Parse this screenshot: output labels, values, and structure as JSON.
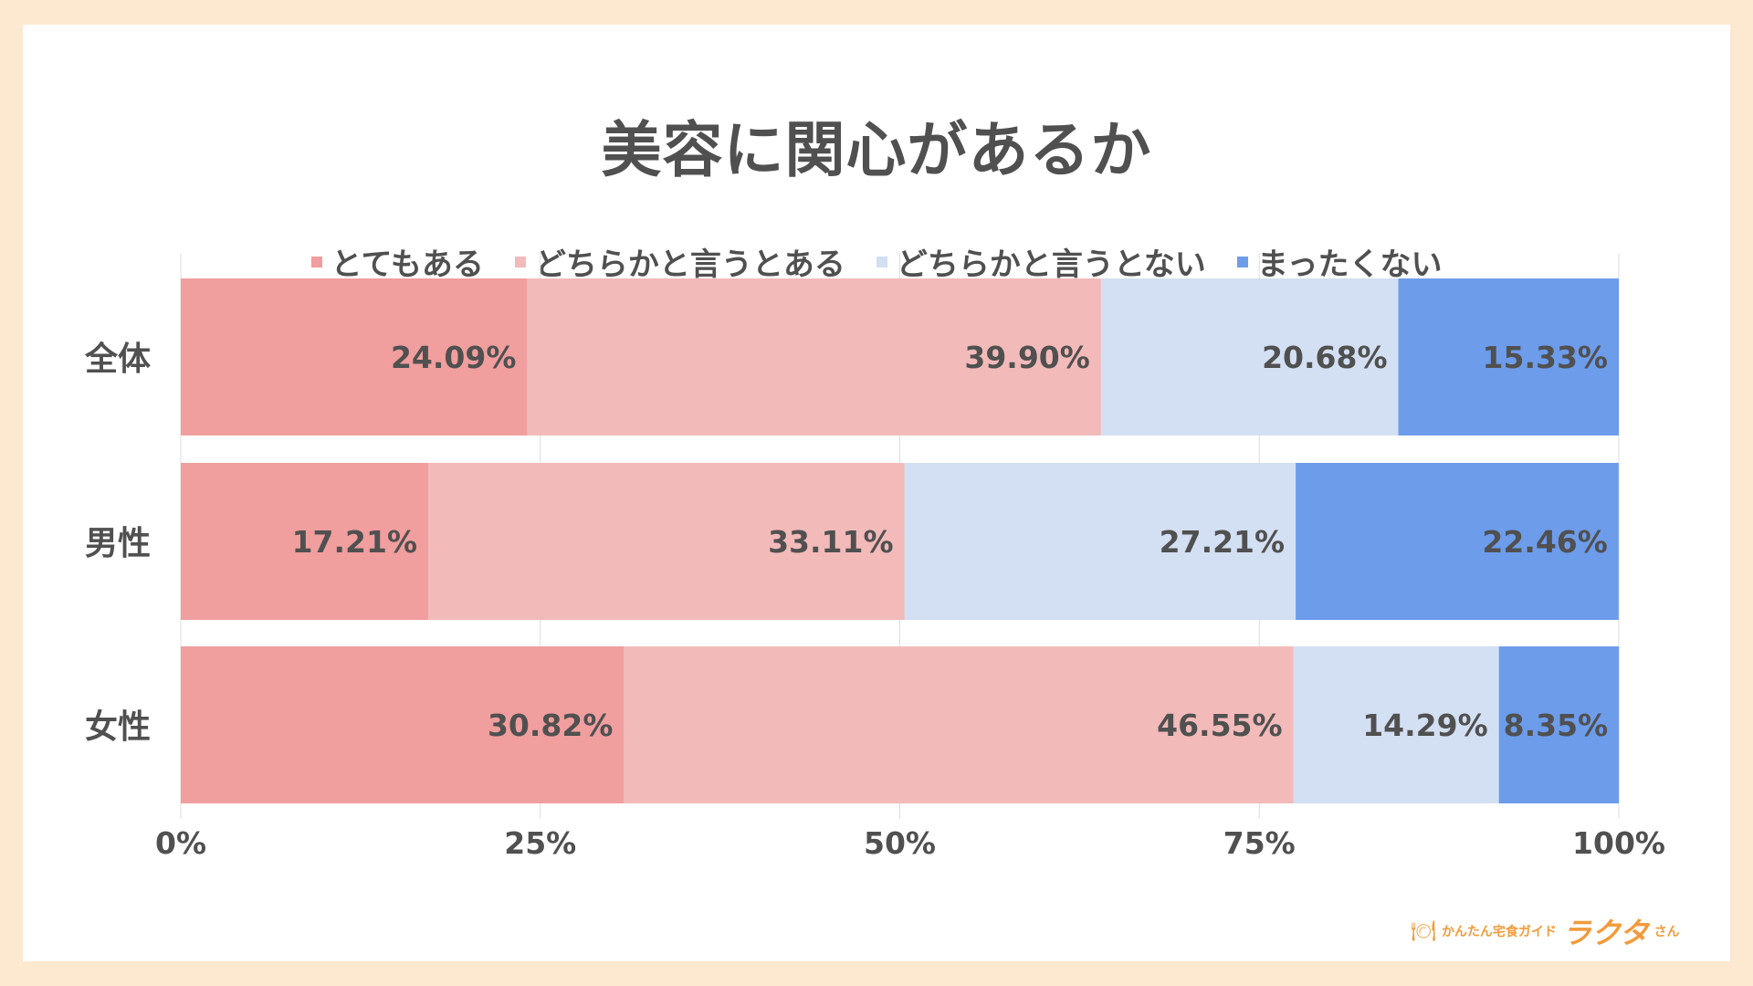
{
  "chart_data": {
    "type": "bar",
    "orientation": "horizontal",
    "stacked": true,
    "title": "美容に関心があるか",
    "categories": [
      "全体",
      "男性",
      "女性"
    ],
    "series": [
      {
        "name": "とてもある",
        "values": [
          24.09,
          17.21,
          30.82
        ],
        "labels": [
          "24.09%",
          "17.21%",
          "30.82%"
        ],
        "color": "#f19e9e"
      },
      {
        "name": "どちらかと言うとある",
        "values": [
          39.9,
          33.11,
          46.55
        ],
        "labels": [
          "39.90%",
          "33.11%",
          "46.55%"
        ],
        "color": "#f3baba"
      },
      {
        "name": "どちらかと言うとない",
        "values": [
          20.68,
          27.21,
          14.29
        ],
        "labels": [
          "20.68%",
          "27.21%",
          "14.29%"
        ],
        "color": "#d3dff2"
      },
      {
        "name": "まったくない",
        "values": [
          15.33,
          22.46,
          8.35
        ],
        "labels": [
          "15.33%",
          "22.46%",
          "8.35%"
        ],
        "color": "#6d9ceb"
      }
    ],
    "xlim": [
      0,
      100
    ],
    "x_ticks": [
      0,
      25,
      50,
      75,
      100
    ],
    "x_tick_labels": [
      "0%",
      "25%",
      "50%",
      "75%",
      "100%"
    ],
    "grid": true,
    "legend_position": "top"
  },
  "brand": {
    "sub": "かんたん宅食ガイド",
    "main": "ラクタ",
    "suffix": "さん"
  },
  "colors": {
    "background": "#fde8d0",
    "card": "#ffffff",
    "text": "#505050",
    "brand": "#f29a3a",
    "grid": "#dddddd"
  }
}
